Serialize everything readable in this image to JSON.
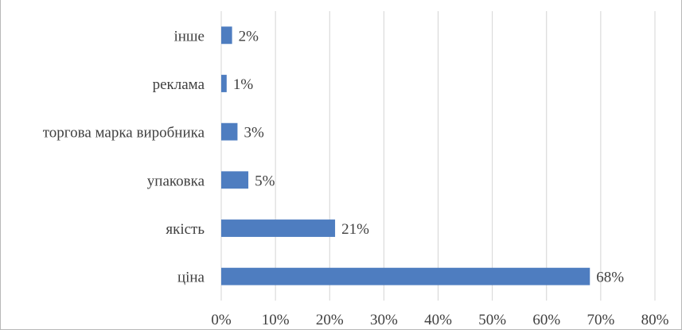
{
  "chart_data": {
    "type": "bar",
    "orientation": "horizontal",
    "categories": [
      "інше",
      "реклама",
      "торгова марка виробника",
      "упаковка",
      "якість",
      "ціна"
    ],
    "values": [
      2,
      1,
      3,
      5,
      21,
      68
    ],
    "data_labels": [
      "2%",
      "1%",
      "3%",
      "5%",
      "21%",
      "68%"
    ],
    "x_ticks": [
      "0%",
      "10%",
      "20%",
      "30%",
      "40%",
      "50%",
      "60%",
      "70%",
      "80%"
    ],
    "xlim": [
      0,
      80
    ],
    "grid": "vertical",
    "legend": "none",
    "title": "",
    "xlabel": "",
    "ylabel": "",
    "colors": {
      "bar": "#4e7dc0",
      "grid": "#d4d4d4",
      "text": "#404040"
    }
  }
}
